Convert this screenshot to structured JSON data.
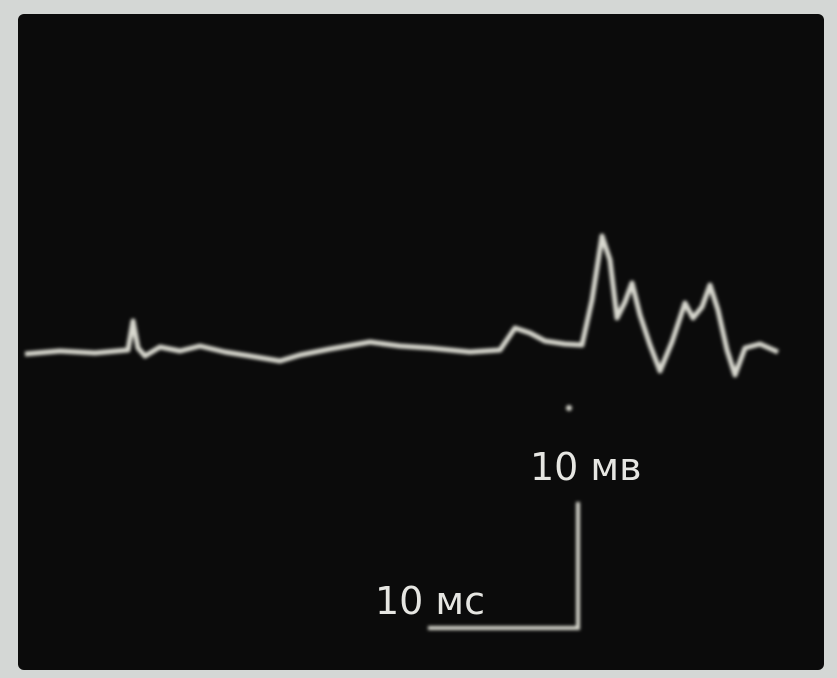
{
  "labels": {
    "voltage_scale": "10 мв",
    "time_scale": "10 мс"
  }
}
